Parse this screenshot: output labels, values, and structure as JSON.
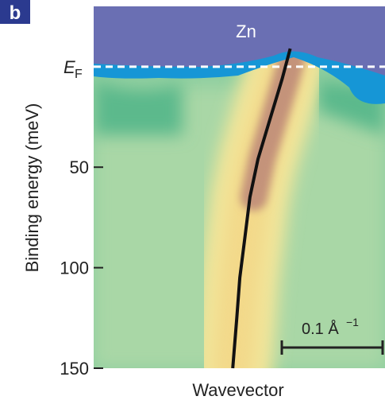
{
  "chart_data": {
    "type": "line",
    "panel_label": "b",
    "region_label": "Zn",
    "ef_label": "E",
    "ef_subscript": "F",
    "ylabel": "Binding energy (meV)",
    "xlabel": "Wavevector",
    "ylim": [
      -30,
      150
    ],
    "y_direction": "down",
    "yticks": [
      50,
      100,
      150
    ],
    "xlim": [
      0,
      0.289
    ],
    "fermi_level": 0,
    "scale_bar": {
      "value": 0.1,
      "label": "0.1 Å",
      "superscript": "−1"
    },
    "series": [
      {
        "color": "#111111",
        "x": [
          0.195,
          0.187,
          0.175,
          0.163,
          0.155,
          0.15,
          0.145,
          0.142,
          0.138
        ],
        "values": [
          -9,
          6,
          26,
          46,
          65,
          85,
          105,
          125,
          150
        ]
      }
    ]
  }
}
